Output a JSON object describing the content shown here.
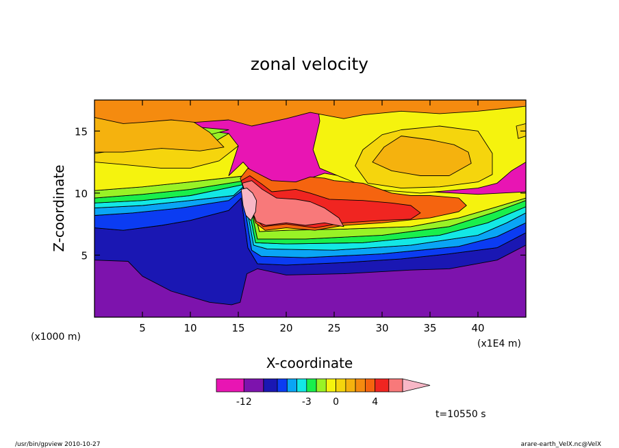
{
  "chart_data": {
    "type": "heatmap",
    "title": "zonal velocity",
    "xlabel": "X-coordinate",
    "ylabel": "Z-coordinate",
    "x_unit": "(x1E4 m)",
    "y_unit": "(x1000 m)",
    "xlim": [
      0,
      45
    ],
    "ylim": [
      0,
      17.5
    ],
    "x_ticks": [
      "5",
      "10",
      "15",
      "20",
      "25",
      "30",
      "35",
      "40"
    ],
    "x_tick_values": [
      5,
      10,
      15,
      20,
      25,
      30,
      35,
      40
    ],
    "y_ticks": [
      "5",
      "10",
      "15"
    ],
    "y_tick_values": [
      5,
      10,
      15
    ],
    "colorbar": {
      "levels": [
        -20,
        -12,
        -8,
        -6,
        -5,
        -4,
        -3,
        -2,
        -1,
        0,
        1,
        2,
        3,
        4,
        6,
        8
      ],
      "colors": [
        "#e815b3",
        "#7d13ad",
        "#1a17b3",
        "#0b3cf2",
        "#0aa5f5",
        "#13e8e5",
        "#19ef4c",
        "#99f226",
        "#f5f30e",
        "#f5d50d",
        "#f5b20e",
        "#f58b0f",
        "#f5640f",
        "#f02521",
        "#f8797a",
        "#f8b7c6"
      ],
      "tick_labels": [
        "-12",
        "-3",
        "0",
        "4"
      ],
      "tick_values": [
        -12,
        -3,
        0,
        4
      ]
    },
    "regions": [
      {
        "level": 0,
        "polys": [
          [
            0,
            17.5,
            45,
            17.5,
            45,
            0,
            0,
            0
          ]
        ]
      },
      {
        "level": 1,
        "polys": [
          [
            0,
            5.8,
            14,
            6.2,
            15.3,
            7.6,
            17,
            4.2,
            20,
            3.5,
            26,
            3.8,
            36,
            4.4,
            42,
            4.8,
            45,
            6.2,
            45,
            0,
            0,
            0
          ]
        ]
      },
      {
        "level": 2,
        "polys": [
          [
            0,
            7.2,
            3,
            7.0,
            7,
            7.4,
            10,
            7.8,
            14,
            8.6,
            15.3,
            9.6,
            16,
            5.6,
            17,
            4.3,
            20,
            4.2,
            26,
            4.4,
            32,
            4.7,
            37,
            5.1,
            42,
            5.6,
            45,
            6.8,
            45,
            5.8,
            42,
            4.6,
            37,
            3.9,
            33,
            3.8,
            26,
            3.5,
            20,
            3.4,
            17,
            3.9,
            15.9,
            3.5,
            15.2,
            1.2,
            14.3,
            1.0,
            12,
            1.2,
            8,
            2.1,
            5,
            3.3,
            3.5,
            4.5,
            0,
            4.6
          ]
        ]
      },
      {
        "level": 3,
        "polys": [
          [
            0,
            8.2,
            4,
            8.4,
            9,
            8.8,
            14,
            9.4,
            15.4,
            10.2,
            16.4,
            5.4,
            17.4,
            4.9,
            22,
            4.8,
            30,
            5.1,
            38,
            5.7,
            42,
            6.5,
            45,
            7.6,
            45,
            6.8,
            42,
            5.6,
            37,
            5.1,
            32,
            4.7,
            26,
            4.4,
            20,
            4.2,
            17,
            4.3,
            16,
            5.6,
            15.3,
            9.6,
            14,
            8.6,
            10,
            7.8,
            7,
            7.4,
            3,
            7.0,
            0,
            7.2
          ]
        ]
      },
      {
        "level": 4,
        "polys": [
          [
            0,
            8.8,
            5,
            9.0,
            10,
            9.4,
            14.5,
            9.8,
            15.5,
            10.5,
            16.6,
            5.8,
            18,
            5.5,
            25,
            5.4,
            33,
            5.8,
            40,
            6.6,
            43,
            7.6,
            45,
            8.4,
            45,
            7.6,
            42,
            6.5,
            38,
            5.7,
            30,
            5.1,
            22,
            4.8,
            17.4,
            4.9,
            16.4,
            5.4,
            15.4,
            10.2,
            14,
            9.4,
            9,
            8.8,
            4,
            8.4,
            0,
            8.2
          ]
        ]
      },
      {
        "level": 5,
        "polys": [
          [
            0,
            9.2,
            5,
            9.4,
            10,
            9.8,
            15.6,
            10.7,
            16.8,
            6.0,
            20,
            5.9,
            28,
            6.0,
            36,
            6.6,
            41,
            7.6,
            45,
            8.9,
            45,
            8.4,
            43,
            7.6,
            40,
            6.6,
            33,
            5.8,
            25,
            5.4,
            18,
            5.5,
            16.6,
            5.8,
            15.5,
            10.5,
            14.5,
            9.8,
            10,
            9.4,
            5,
            9.0,
            0,
            8.8
          ]
        ]
      },
      {
        "level": 6,
        "polys": [
          [
            0,
            9.6,
            5,
            9.9,
            10,
            10.3,
            15.7,
            11.0,
            17,
            6.3,
            22,
            6.3,
            30,
            6.6,
            37,
            7.3,
            41.5,
            8.4,
            45,
            9.4,
            45,
            8.9,
            41,
            7.6,
            36,
            6.6,
            28,
            6.0,
            20,
            5.9,
            16.8,
            6.0,
            15.6,
            10.7,
            10,
            9.8,
            5,
            9.4,
            0,
            9.2
          ]
        ]
      },
      {
        "level": 7,
        "polys": [
          [
            0,
            10.2,
            5,
            10.5,
            10,
            10.9,
            15.8,
            11.4,
            17.2,
            6.9,
            20,
            7.0,
            26,
            7.1,
            33,
            7.3,
            38,
            8.0,
            42,
            8.9,
            45,
            9.6,
            45,
            9.4,
            41.5,
            8.4,
            37,
            7.3,
            30,
            6.6,
            22,
            6.3,
            17,
            6.3,
            15.7,
            11.0,
            10,
            10.3,
            5,
            9.9,
            0,
            9.6
          ],
          [
            0,
            14.3,
            1.5,
            15.5,
            4,
            15.6,
            9,
            15.3,
            14,
            14.8,
            12,
            13.9,
            8,
            14.0,
            3,
            13.5,
            0,
            13.2
          ],
          [
            0,
            16.2,
            2,
            15.9,
            5,
            16.0,
            9,
            16.2,
            11,
            15.3,
            14,
            15.1,
            10.5,
            14.4,
            7,
            14.6,
            3,
            15.2,
            0,
            15.0
          ],
          [
            30,
            13.5,
            32,
            14.7,
            35,
            14.8,
            38,
            14.6,
            40,
            13.9,
            40.4,
            12.3,
            39,
            11.2,
            36,
            10.8,
            32,
            10.6,
            29,
            11.3,
            28,
            12.3
          ]
        ]
      },
      {
        "level": 8,
        "polys": [
          [
            0,
            16.3,
            3,
            15.8,
            6,
            15.7,
            10,
            15.0,
            13,
            14.0,
            15,
            13.8,
            14,
            11.4,
            15.5,
            12.5,
            17,
            11.2,
            18.5,
            10.5,
            21,
            10.8,
            24,
            11.6,
            27,
            11.2,
            30,
            10.5,
            35,
            10.1,
            40,
            9.9,
            45,
            10.1,
            45,
            9.6,
            42,
            8.9,
            38,
            8.0,
            33,
            7.3,
            26,
            7.1,
            20,
            7.0,
            17.2,
            6.9,
            15.8,
            11.4,
            10,
            10.9,
            5,
            10.5,
            0,
            10.2
          ],
          [
            23.2,
            17.5,
            45,
            17.5,
            45,
            12.5,
            43.5,
            11.8,
            42,
            10.8,
            40,
            10.4,
            34,
            10.0,
            29,
            10.3,
            26,
            11.2,
            23.5,
            12.0,
            22.8,
            13.5,
            23.5,
            15.8
          ]
        ]
      },
      {
        "level": 9,
        "polys": [
          [
            0,
            13.2,
            3,
            13.5,
            8,
            14.0,
            12,
            13.9,
            14,
            14.8,
            15,
            13.8,
            13,
            12.6,
            10,
            12.0,
            7,
            12.0,
            3,
            12.3,
            0,
            12.5
          ],
          [
            32,
            15.1,
            36,
            15.4,
            40,
            15.0,
            41.5,
            13.2,
            41.5,
            11.5,
            40,
            10.9,
            36,
            10.5,
            32,
            10.4,
            28.5,
            10.8,
            27.2,
            12.2,
            28,
            13.5,
            30,
            14.7
          ],
          [
            44,
            15.4,
            45,
            15.6,
            45,
            14.6,
            44.2,
            14.4
          ]
        ]
      },
      {
        "level": 10,
        "polys": [
          [
            0,
            16.4,
            3,
            16.2,
            5,
            16.0,
            8,
            16.3,
            10,
            15.9,
            12,
            14.9,
            13.5,
            13.7,
            11,
            13.4,
            7,
            13.6,
            3,
            13.3,
            0,
            13.3
          ],
          [
            30.2,
            13.7,
            32,
            14.6,
            35,
            14.3,
            37.5,
            13.9,
            39,
            13.3,
            39.3,
            12.4,
            37,
            11.4,
            34,
            11.4,
            31,
            11.8,
            29,
            12.5
          ]
        ]
      },
      {
        "level": 11,
        "polys": [
          [
            0,
            17.5,
            45,
            17.5,
            45,
            17.0,
            40,
            16.6,
            36,
            16.4,
            32,
            16.6,
            28,
            16.3,
            26,
            16.0,
            22.5,
            16.5,
            20,
            16.0,
            16.4,
            15.4,
            14,
            15.9,
            10.5,
            15.7,
            8,
            15.9,
            5,
            15.7,
            3,
            15.6,
            0,
            16.1
          ]
        ]
      },
      {
        "level": 12,
        "polys": [
          [
            15.2,
            11.2,
            16,
            12.0,
            17,
            11.6,
            18.5,
            11.0,
            21,
            10.9,
            22.5,
            11.3,
            24,
            11.2,
            25,
            11.0,
            28,
            10.8,
            31,
            10.0,
            33,
            9.8,
            35,
            9.8,
            38,
            9.6,
            38.8,
            9.0,
            38,
            8.5,
            35,
            8.0,
            30,
            7.6,
            26,
            7.4,
            23,
            7.0,
            20,
            7.2,
            17.8,
            7.0,
            16.8,
            7.6,
            16,
            9.5
          ]
        ]
      },
      {
        "level": 13,
        "polys": [
          [
            15.3,
            11.0,
            16.2,
            11.4,
            17.5,
            10.7,
            18.5,
            10.1,
            21,
            10.3,
            22.5,
            10.0,
            24.5,
            9.5,
            28,
            9.4,
            31,
            9.2,
            33,
            9.0,
            34,
            8.4,
            33,
            7.9,
            30,
            7.8,
            26,
            7.6,
            23,
            7.2,
            20,
            7.5,
            17.6,
            7.3,
            16.7,
            8.0,
            15.8,
            9.6
          ]
        ]
      },
      {
        "level": 14,
        "polys": [
          [
            15.4,
            10.8,
            16.4,
            11.0,
            17.5,
            10.3,
            19,
            9.6,
            21,
            9.5,
            22.5,
            9.3,
            24,
            8.8,
            25.5,
            8.0,
            26,
            7.3,
            24,
            7.6,
            22,
            7.4,
            20,
            7.6,
            17.9,
            7.4,
            16.9,
            7.7,
            16.1,
            9.2
          ]
        ]
      },
      {
        "level": 15,
        "polys": [
          [
            15.3,
            10.3,
            15.9,
            10.4,
            16.5,
            10.0,
            16.9,
            9.4,
            16.8,
            8.5,
            16.3,
            7.8,
            15.8,
            8.2,
            15.5,
            9.0
          ]
        ]
      }
    ]
  },
  "time_label": "t=10550 s",
  "footer_left": "/usr/bin/gpview  2010-10-27",
  "footer_right": "arare-earth_VelX.nc@VelX"
}
